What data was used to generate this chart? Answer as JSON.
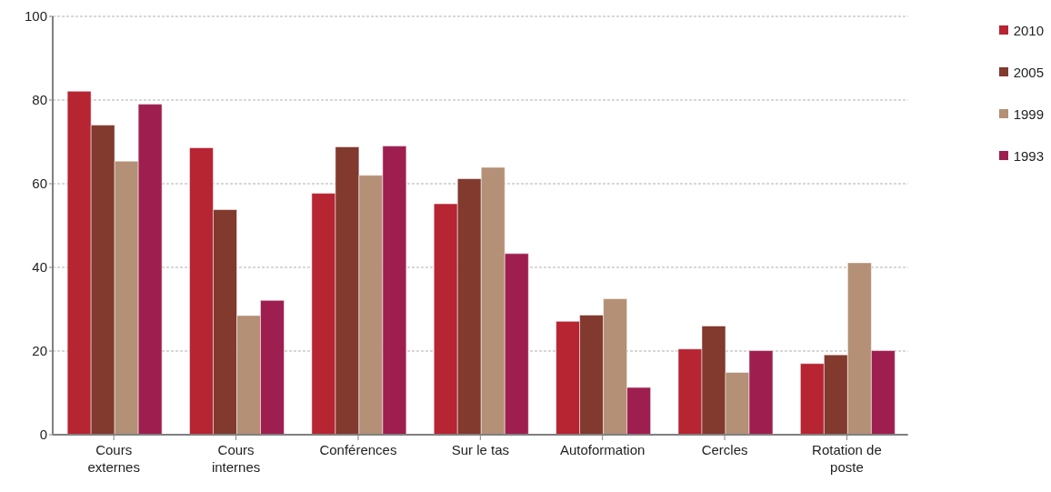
{
  "chart_data": {
    "type": "bar",
    "categories": [
      "Cours externes",
      "Cours internes",
      "Conférences",
      "Sur le tas",
      "Autoformation",
      "Cercles",
      "Rotation de poste"
    ],
    "series": [
      {
        "name": "2010",
        "color": "#b72432",
        "values": [
          82.1,
          68.6,
          57.7,
          55.2,
          27.1,
          20.5,
          17.0
        ]
      },
      {
        "name": "2005",
        "color": "#82392e",
        "values": [
          74.0,
          53.8,
          68.8,
          61.2,
          28.6,
          26.0,
          19.1
        ]
      },
      {
        "name": "1999",
        "color": "#b39076",
        "values": [
          65.4,
          28.5,
          62.0,
          63.9,
          32.5,
          14.9,
          41.1
        ]
      },
      {
        "name": "1993",
        "color": "#9e1f4f",
        "values": [
          79.0,
          32.1,
          69.0,
          43.3,
          11.3,
          20.1,
          20.1
        ]
      }
    ],
    "ylim": [
      0,
      100
    ],
    "yticks": [
      0,
      20,
      40,
      60,
      80,
      100
    ],
    "grid": "y",
    "legend": "top right"
  }
}
